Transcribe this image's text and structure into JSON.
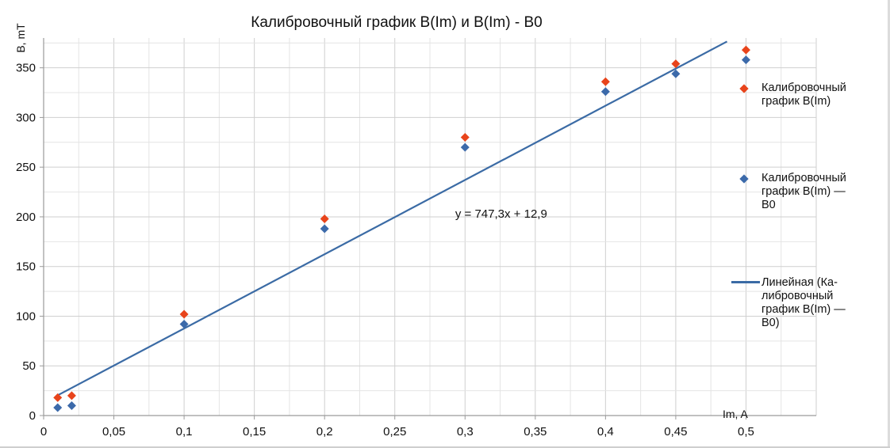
{
  "chart_data": {
    "type": "scatter",
    "title": "Калибровочный график B(Im) и B(Im) - B0",
    "xlabel": "Im, A",
    "ylabel": "B, mT",
    "xlim": [
      0,
      0.55
    ],
    "ylim": [
      0,
      380
    ],
    "x_ticks": [
      0,
      0.05,
      0.1,
      0.15,
      0.2,
      0.25,
      0.3,
      0.35,
      0.4,
      0.45,
      0.5
    ],
    "x_tick_labels": [
      "0",
      "0,05",
      "0,1",
      "0,15",
      "0,2",
      "0,25",
      "0,3",
      "0,35",
      "0,4",
      "0,45",
      "0,5"
    ],
    "y_ticks": [
      0,
      50,
      100,
      150,
      200,
      250,
      300,
      350
    ],
    "y_tick_labels": [
      "0",
      "50",
      "100",
      "150",
      "200",
      "250",
      "300",
      "350"
    ],
    "grid": true,
    "legend_position": "right",
    "series": [
      {
        "name": "Калибровочный график B(Im)",
        "color": "#e8441b",
        "marker": "diamond",
        "x": [
          0.01,
          0.02,
          0.1,
          0.2,
          0.3,
          0.4,
          0.45,
          0.5
        ],
        "y": [
          18,
          20,
          102,
          198,
          280,
          336,
          354,
          368
        ]
      },
      {
        "name": "Калибровочный график B(Im) — B0",
        "color": "#3c6aaa",
        "marker": "diamond",
        "x": [
          0.01,
          0.02,
          0.1,
          0.2,
          0.3,
          0.4,
          0.45,
          0.5
        ],
        "y": [
          8,
          10,
          92,
          188,
          270,
          326,
          344,
          358
        ]
      }
    ],
    "trendline": {
      "name": "Линейная (Калибровочный график B(Im) — B0)",
      "legend_label": "Линейная (Ка-\nлибровочный\nграфик B(Im) —\nB0)",
      "color": "#3b6ba5",
      "slope": 747.3,
      "intercept": 12.9,
      "x_range": [
        0.01,
        0.4865
      ],
      "equation": "y = 747,3x + 12,9"
    },
    "legend": [
      {
        "label": "Калибровочный\nграфик B(Im)",
        "kind": "diamond",
        "color": "#e8441b"
      },
      {
        "label": "Калибровочный\nграфик B(Im) —\nB0",
        "kind": "diamond",
        "color": "#3c6aaa"
      },
      {
        "label": "Линейная (Ка-\nлибровочный\nграфик B(Im) —\nB0)",
        "kind": "line",
        "color": "#3b6ba5"
      }
    ]
  }
}
